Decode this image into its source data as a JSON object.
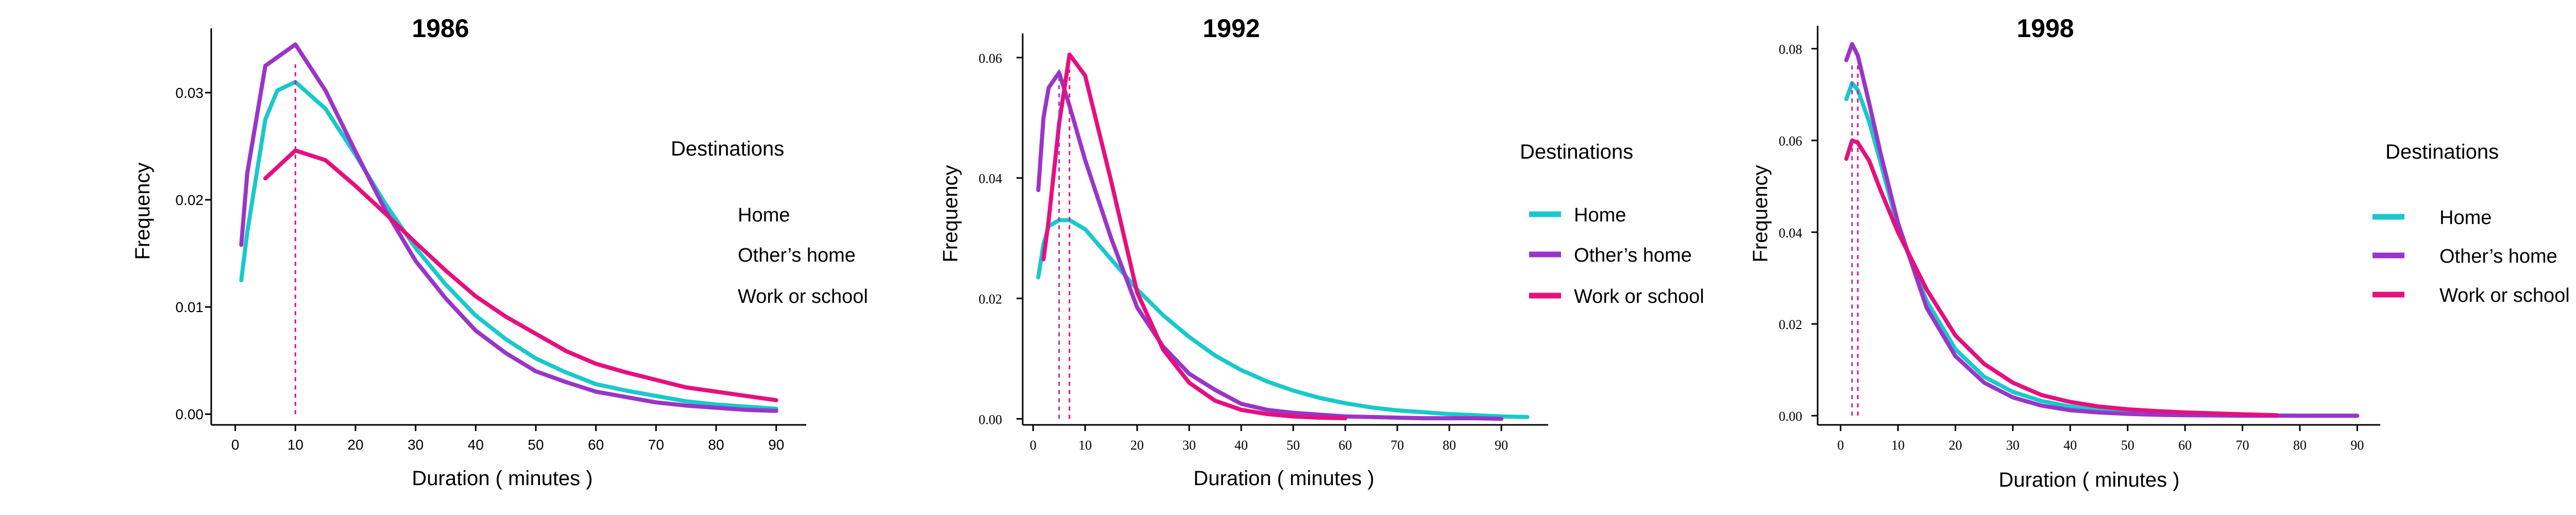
{
  "colors": {
    "home": "#1ac8cc",
    "others_home": "#9a35c8",
    "work_or_school": "#e5107f"
  },
  "chart_data": [
    {
      "type": "line",
      "title": "1986",
      "xlabel": "Duration ( minutes )",
      "ylabel": "Frequency",
      "xlim": [
        -4,
        95
      ],
      "ylim": [
        -0.001,
        0.036
      ],
      "xticks": [
        0,
        10,
        20,
        30,
        40,
        50,
        60,
        70,
        80,
        90
      ],
      "yticks": [
        0.0,
        0.01,
        0.02,
        0.03
      ],
      "ytick_labels": [
        "0.00",
        "0.01",
        "0.02",
        "0.03"
      ],
      "tick_font": "sans",
      "legend_title": "Destinations",
      "legend_swatches": false,
      "peak_lines": [
        10
      ],
      "series": [
        {
          "name": "Home",
          "color_key": "home",
          "x": [
            1,
            2,
            5,
            7,
            10,
            15,
            20,
            25,
            30,
            35,
            40,
            45,
            50,
            55,
            60,
            65,
            70,
            75,
            80,
            85,
            90
          ],
          "y": [
            0.0125,
            0.017,
            0.0275,
            0.0302,
            0.031,
            0.0285,
            0.0242,
            0.0196,
            0.0155,
            0.0121,
            0.0092,
            0.007,
            0.0052,
            0.0039,
            0.0028,
            0.0022,
            0.0017,
            0.0012,
            0.0009,
            0.0007,
            0.0005
          ]
        },
        {
          "name": "Other’s home",
          "color_key": "others_home",
          "x": [
            1,
            2,
            5,
            10,
            15,
            20,
            25,
            30,
            35,
            40,
            45,
            50,
            55,
            60,
            65,
            70,
            75,
            80,
            85,
            90
          ],
          "y": [
            0.0158,
            0.0225,
            0.0325,
            0.0345,
            0.0302,
            0.0245,
            0.019,
            0.0143,
            0.0108,
            0.0078,
            0.0057,
            0.004,
            0.003,
            0.0021,
            0.0016,
            0.0011,
            0.0008,
            0.0006,
            0.0004,
            0.0003
          ]
        },
        {
          "name": "Work or school",
          "color_key": "work_or_school",
          "x": [
            5,
            10,
            15,
            20,
            25,
            30,
            35,
            40,
            45,
            50,
            55,
            60,
            65,
            70,
            75,
            80,
            85,
            90
          ],
          "y": [
            0.022,
            0.0246,
            0.0237,
            0.0213,
            0.0187,
            0.016,
            0.0134,
            0.011,
            0.0091,
            0.0075,
            0.0059,
            0.0047,
            0.0039,
            0.0032,
            0.0025,
            0.0021,
            0.0017,
            0.0013
          ]
        }
      ]
    },
    {
      "type": "line",
      "title": "1992",
      "xlabel": "Duration ( minutes )",
      "ylabel": "Frequency",
      "xlim": [
        -2,
        99
      ],
      "ylim": [
        -0.001,
        0.064
      ],
      "xticks": [
        0,
        10,
        20,
        30,
        40,
        50,
        60,
        70,
        80,
        90
      ],
      "yticks": [
        0.0,
        0.02,
        0.04,
        0.06
      ],
      "ytick_labels": [
        "0.00",
        "0.02",
        "0.04",
        "0.06"
      ],
      "tick_font": "serif",
      "legend_title": "Destinations",
      "legend_swatches": true,
      "peak_lines": [
        5,
        7
      ],
      "series": [
        {
          "name": "Home",
          "color_key": "home",
          "x": [
            1,
            2,
            3,
            5,
            7,
            10,
            15,
            20,
            25,
            30,
            35,
            40,
            45,
            50,
            55,
            60,
            65,
            70,
            75,
            80,
            85,
            90,
            95
          ],
          "y": [
            0.0235,
            0.029,
            0.032,
            0.033,
            0.033,
            0.0315,
            0.0265,
            0.0215,
            0.0172,
            0.0136,
            0.0105,
            0.0081,
            0.0062,
            0.0047,
            0.0035,
            0.0026,
            0.0019,
            0.0014,
            0.0011,
            0.0008,
            0.0006,
            0.0004,
            0.0003
          ]
        },
        {
          "name": "Other’s home",
          "color_key": "others_home",
          "x": [
            1,
            2,
            3,
            5,
            7,
            10,
            15,
            20,
            25,
            30,
            35,
            40,
            45,
            50,
            55,
            60,
            65,
            70,
            75,
            80,
            85,
            90
          ],
          "y": [
            0.038,
            0.05,
            0.055,
            0.0575,
            0.052,
            0.043,
            0.03,
            0.0185,
            0.012,
            0.0075,
            0.0048,
            0.0025,
            0.0015,
            0.001,
            0.0007,
            0.0004,
            0.0003,
            0.0002,
            0.0001,
            0.0001,
            0.0001,
            0.0
          ]
        },
        {
          "name": "Work or school",
          "color_key": "work_or_school",
          "x": [
            2,
            3,
            5,
            7,
            10,
            15,
            20,
            25,
            30,
            35,
            40,
            45,
            50,
            55,
            60
          ],
          "y": [
            0.0265,
            0.033,
            0.049,
            0.0605,
            0.057,
            0.0395,
            0.021,
            0.0115,
            0.006,
            0.003,
            0.0015,
            0.0008,
            0.0004,
            0.0002,
            0.0001
          ]
        }
      ]
    },
    {
      "type": "line",
      "title": "1998",
      "xlabel": "Duration ( minutes )",
      "ylabel": "Frequency",
      "xlim": [
        -4,
        94
      ],
      "ylim": [
        -0.002,
        0.085
      ],
      "xticks": [
        0,
        10,
        20,
        30,
        40,
        50,
        60,
        70,
        80,
        90
      ],
      "yticks": [
        0.0,
        0.02,
        0.04,
        0.06,
        0.08
      ],
      "ytick_labels": [
        "0.00",
        "0.02",
        "0.04",
        "0.06",
        "0.08"
      ],
      "tick_font": "serif",
      "legend_title": "Destinations",
      "legend_swatches": true,
      "peak_lines": [
        2,
        3
      ],
      "series": [
        {
          "name": "Home",
          "color_key": "home",
          "x": [
            1,
            2,
            3,
            5,
            7,
            10,
            15,
            20,
            25,
            30,
            35,
            40,
            45,
            50,
            55,
            60,
            70,
            80,
            90
          ],
          "y": [
            0.069,
            0.0725,
            0.071,
            0.064,
            0.055,
            0.041,
            0.025,
            0.0145,
            0.0085,
            0.0052,
            0.0032,
            0.002,
            0.0012,
            0.0008,
            0.0005,
            0.0003,
            0.0001,
            0.0,
            0.0
          ]
        },
        {
          "name": "Other’s home",
          "color_key": "others_home",
          "x": [
            1,
            2,
            3,
            5,
            7,
            10,
            15,
            20,
            25,
            30,
            35,
            40,
            45,
            50,
            55,
            60,
            70,
            80,
            90
          ],
          "y": [
            0.0775,
            0.081,
            0.0785,
            0.068,
            0.057,
            0.042,
            0.0235,
            0.013,
            0.0072,
            0.004,
            0.0022,
            0.0012,
            0.0007,
            0.0004,
            0.0002,
            0.0001,
            0.0,
            0.0,
            0.0
          ]
        },
        {
          "name": "Work or school",
          "color_key": "work_or_school",
          "x": [
            1,
            2,
            3,
            5,
            7,
            10,
            15,
            20,
            25,
            30,
            35,
            40,
            45,
            50,
            55,
            60,
            70,
            76
          ],
          "y": [
            0.056,
            0.06,
            0.0595,
            0.0555,
            0.049,
            0.04,
            0.0275,
            0.0175,
            0.0113,
            0.0072,
            0.0045,
            0.003,
            0.002,
            0.0014,
            0.001,
            0.0007,
            0.0003,
            0.0001
          ]
        }
      ]
    }
  ]
}
